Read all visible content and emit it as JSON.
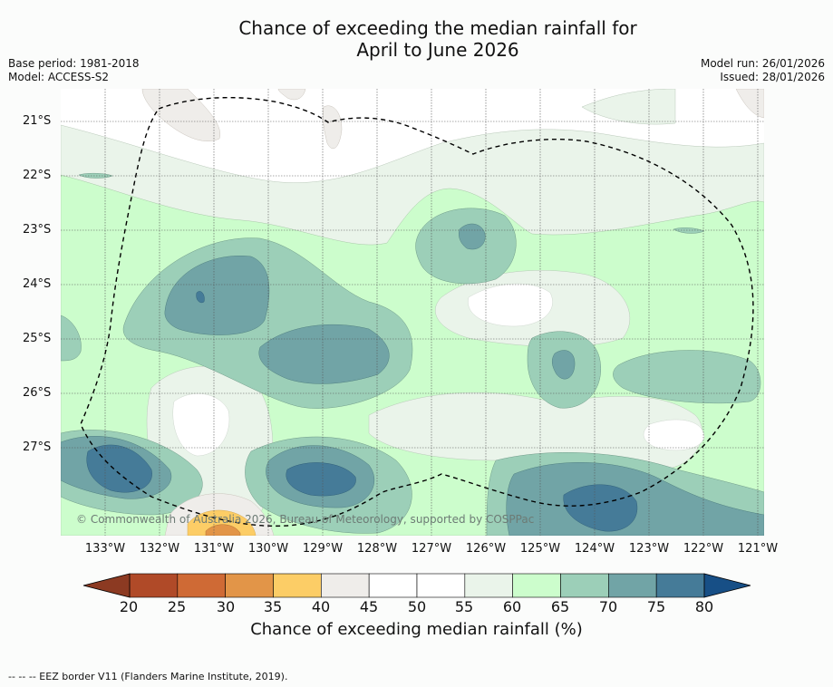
{
  "title_line1": "Chance of exceeding the median rainfall for",
  "title_line2": "April to June 2026",
  "base_period": "Base period: 1981-2018",
  "model": "Model: ACCESS-S2",
  "model_run": "Model run: 26/01/2026",
  "issued": "Issued: 28/01/2026",
  "copyright": "© Commonwealth of Australia 2026, Bureau of Meteorology, supported by COSPPac",
  "footer_legend": "--  --  -- EEZ border V11 (Flanders Marine Institute, 2019).",
  "latitude_labels": [
    "21°S",
    "22°S",
    "23°S",
    "24°S",
    "25°S",
    "26°S",
    "27°S"
  ],
  "longitude_labels": [
    "133°W",
    "132°W",
    "131°W",
    "130°W",
    "129°W",
    "128°W",
    "127°W",
    "126°W",
    "125°W",
    "124°W",
    "123°W",
    "122°W",
    "121°W"
  ],
  "colorbar": {
    "title": "Chance of exceeding median rainfall (%)",
    "ticks": [
      "20",
      "25",
      "30",
      "35",
      "40",
      "45",
      "50",
      "55",
      "60",
      "65",
      "70",
      "75",
      "80"
    ],
    "under_color": "#8c3a22",
    "over_color": "#174f86",
    "bin_colors": [
      "#b04a28",
      "#cf6a35",
      "#e29548",
      "#fccd66",
      "#efedea",
      "#ffffff",
      "#ffffff",
      "#eaf4ea",
      "#ccfdcc",
      "#9ccfb8",
      "#71a4a6",
      "#457b98"
    ]
  },
  "colors": {
    "background": "#fbfcfb",
    "eez_border": "#000000"
  }
}
